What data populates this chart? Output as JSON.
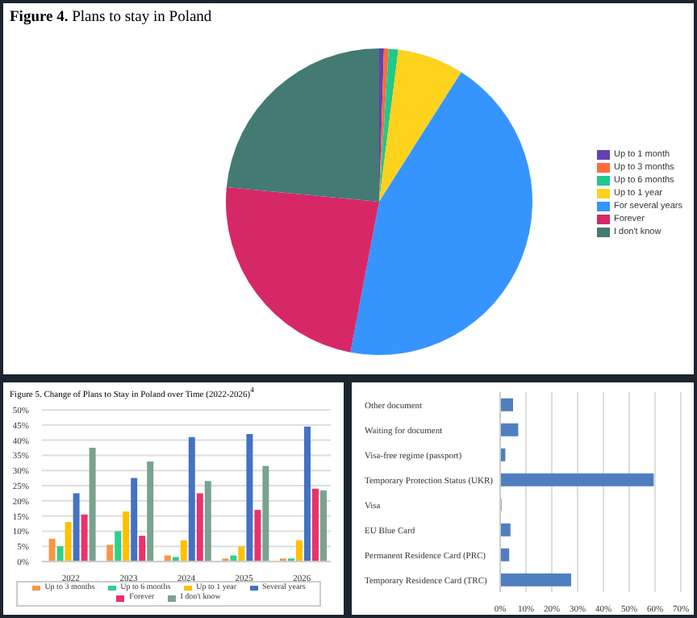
{
  "chart_data": [
    {
      "type": "pie",
      "title": "Figure 4. Plans to stay in Poland",
      "categories": [
        "Up to 1 month",
        "Up to 3 months",
        "Up to 6 months",
        "Up to 1 year",
        "For several years",
        "Forever",
        "I don't know"
      ],
      "values": [
        0.5,
        0.5,
        1,
        7,
        44,
        23.5,
        23.5
      ],
      "colors": [
        "#6541b0",
        "#ff6b3d",
        "#1ec98a",
        "#fcd21d",
        "#3694ff",
        "#d62866",
        "#437a73"
      ],
      "legend": "right"
    },
    {
      "type": "bar",
      "title": "Figure 5. Change of Plans to Stay in Poland over Time (2022-2026)$^{4}$",
      "categories": [
        "2022",
        "2023",
        "2024",
        "2025",
        "2026"
      ],
      "series": [
        {
          "name": "Up to 3 months",
          "color": "#f79646",
          "values": [
            7.5,
            5.5,
            2,
            1,
            1
          ]
        },
        {
          "name": "Up to 6 months",
          "color": "#2ed18a",
          "values": [
            5,
            10,
            1.5,
            2,
            1
          ]
        },
        {
          "name": "Up to 1 year",
          "color": "#ffc000",
          "values": [
            13,
            16.5,
            7,
            5,
            7
          ]
        },
        {
          "name": "Several years",
          "color": "#4472c4",
          "values": [
            22.5,
            27.5,
            41,
            42,
            44.5
          ]
        },
        {
          "name": "Forever",
          "color": "#e8336d",
          "values": [
            15.5,
            8.5,
            22.5,
            17,
            24
          ]
        },
        {
          "name": "I don't know",
          "color": "#7aa38f",
          "values": [
            37.5,
            33,
            26.5,
            31.5,
            23.5
          ]
        }
      ],
      "ylim": [
        0,
        50
      ],
      "yticks": [
        {
          "value": 0,
          "label": "0%"
        },
        {
          "value": 5,
          "label": "5%"
        },
        {
          "value": 10,
          "label": "10%"
        },
        {
          "value": 15,
          "label": "15%"
        },
        {
          "value": 20,
          "label": "20%"
        },
        {
          "value": 25,
          "label": "25%"
        },
        {
          "value": 30,
          "label": "30%"
        },
        {
          "value": 35,
          "label": "35%"
        },
        {
          "value": 40,
          "label": "40%"
        },
        {
          "value": 45,
          "label": "45%"
        },
        {
          "value": 50,
          "label": "50%"
        }
      ],
      "grid": "y",
      "legend": "bottom"
    },
    {
      "type": "bar",
      "orientation": "horizontal",
      "categories": [
        "Other document",
        "Waiting for document",
        "Visa-free regime (passport)",
        "Temporary Protection Status (UKR)",
        "Visa",
        "EU Blue Card",
        "Permanent Residence Card (PRC)",
        "Temporary Residence Card (TRC)"
      ],
      "values": [
        5,
        7,
        2,
        59.5,
        0.5,
        4,
        3.5,
        27.5
      ],
      "color": "#4f7fc0",
      "xlim": [
        0,
        70
      ],
      "xticks": [
        {
          "value": 0,
          "label": "0%"
        },
        {
          "value": 10,
          "label": "10%"
        },
        {
          "value": 20,
          "label": "20%"
        },
        {
          "value": 30,
          "label": "30%"
        },
        {
          "value": 40,
          "label": "40%"
        },
        {
          "value": 50,
          "label": "50%"
        },
        {
          "value": 60,
          "label": "60%"
        },
        {
          "value": 70,
          "label": "70%"
        }
      ],
      "grid": "x"
    }
  ]
}
